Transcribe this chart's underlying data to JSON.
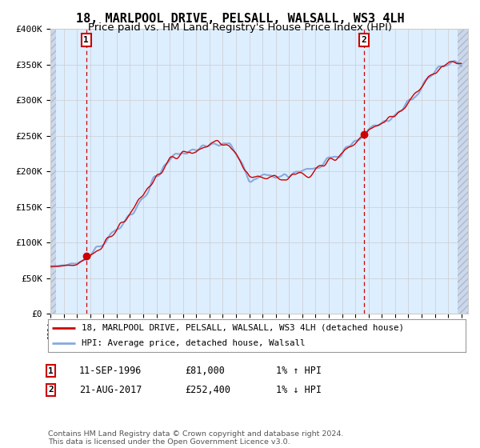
{
  "title": "18, MARLPOOL DRIVE, PELSALL, WALSALL, WS3 4LH",
  "subtitle": "Price paid vs. HM Land Registry's House Price Index (HPI)",
  "ylim": [
    0,
    400000
  ],
  "yticks": [
    0,
    50000,
    100000,
    150000,
    200000,
    250000,
    300000,
    350000,
    400000
  ],
  "ytick_labels": [
    "£0",
    "£50K",
    "£100K",
    "£150K",
    "£200K",
    "£250K",
    "£300K",
    "£350K",
    "£400K"
  ],
  "sale1_date": 1996.7,
  "sale1_price": 81000,
  "sale1_label": "1",
  "sale1_annotation": "11-SEP-1996",
  "sale1_price_str": "£81,000",
  "sale1_hpi": "1% ↑ HPI",
  "sale2_date": 2017.65,
  "sale2_price": 252400,
  "sale2_label": "2",
  "sale2_annotation": "21-AUG-2017",
  "sale2_price_str": "£252,400",
  "sale2_hpi": "1% ↓ HPI",
  "legend_line1": "18, MARLPOOL DRIVE, PELSALL, WALSALL, WS3 4LH (detached house)",
  "legend_line2": "HPI: Average price, detached house, Walsall",
  "footnote": "Contains HM Land Registry data © Crown copyright and database right 2024.\nThis data is licensed under the Open Government Licence v3.0.",
  "line_color": "#cc0000",
  "hpi_color": "#88aadd",
  "bg_color": "#ddeeff",
  "grid_color": "#cccccc",
  "title_fontsize": 11,
  "subtitle_fontsize": 9.5,
  "hatch_bg": "#ccd8ea"
}
